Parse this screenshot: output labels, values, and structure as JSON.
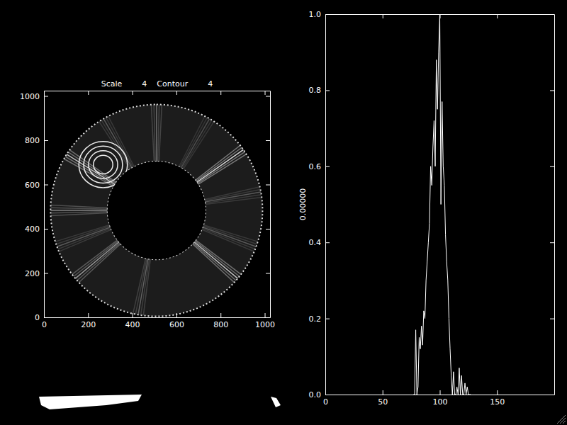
{
  "chart_data": [
    {
      "type": "image",
      "title": "Scale        4    Contour        4",
      "xlim": [
        0,
        1024
      ],
      "xticks": [
        0,
        200,
        400,
        600,
        800,
        1000
      ],
      "ylim": [
        0,
        1024
      ],
      "yticks": [
        0,
        200,
        400,
        600,
        800,
        1000
      ]
    },
    {
      "type": "line",
      "ylabel": "0.00000",
      "color": "#ffffff",
      "x": [
        77,
        78,
        79,
        80,
        81,
        82,
        83,
        84,
        85,
        86,
        87,
        88,
        89,
        90,
        91,
        92,
        93,
        94,
        95,
        96,
        97,
        98,
        99,
        100,
        101,
        102,
        103,
        104,
        105,
        106,
        107,
        108,
        109,
        110,
        111,
        112,
        113,
        114,
        115,
        116,
        117,
        118,
        119,
        120,
        121,
        122,
        123,
        124,
        125,
        126,
        127
      ],
      "values": [
        0,
        0,
        0.17,
        0,
        0.02,
        0.15,
        0.12,
        0.18,
        0.13,
        0.22,
        0.2,
        0.3,
        0.35,
        0.4,
        0.45,
        0.6,
        0.55,
        0.65,
        0.72,
        0.6,
        0.88,
        0.75,
        0.9,
        1.0,
        0.5,
        0.77,
        0.6,
        0.55,
        0.42,
        0.35,
        0.3,
        0.2,
        0.12,
        0.05,
        0,
        0.06,
        0,
        0,
        0.02,
        0,
        0.07,
        0,
        0.05,
        0,
        0,
        0.03,
        0,
        0.02,
        0,
        0,
        0
      ],
      "xlim": [
        0,
        200
      ],
      "xticks": [
        0,
        50,
        100,
        150
      ],
      "ylim": [
        0,
        1
      ],
      "yticks": [
        {
          "value": 0,
          "label": "0.0"
        },
        {
          "value": 0.2,
          "label": "0.2"
        },
        {
          "value": 0.4,
          "label": "0.4"
        },
        {
          "value": 0.6,
          "label": "0.6"
        },
        {
          "value": 0.8,
          "label": "0.8"
        },
        {
          "value": 1,
          "label": "1.0"
        }
      ]
    }
  ]
}
